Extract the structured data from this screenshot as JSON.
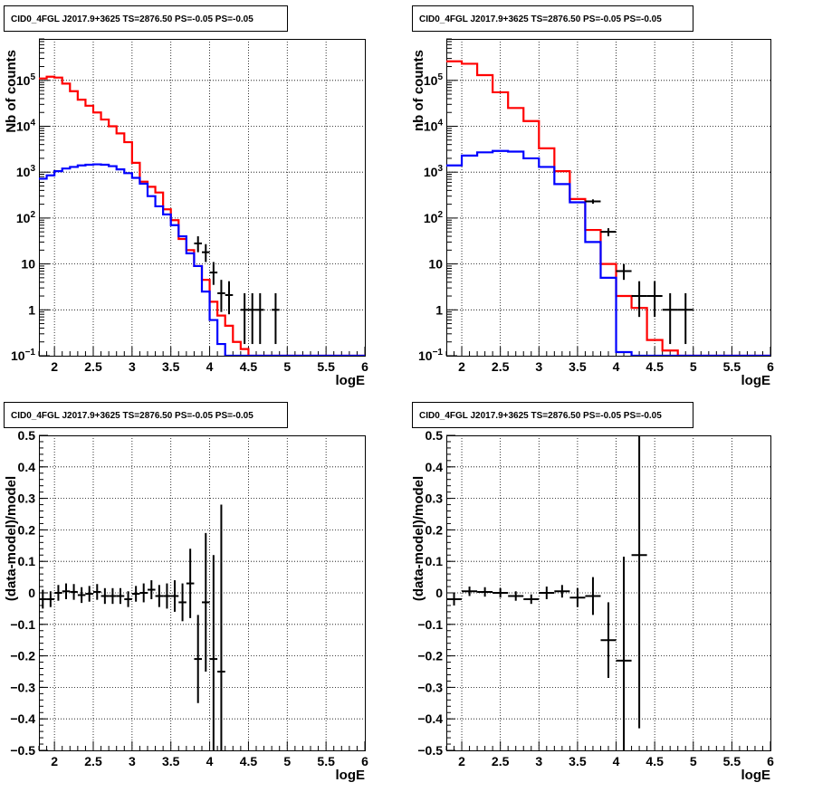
{
  "colors": {
    "data": "#000000",
    "total_model": "#ff0000",
    "component": "#0000ff",
    "grid": "#000000"
  },
  "chart_data": [
    {
      "type": "line",
      "title": "CID0_4FGL J2017.9+3625 TS=2876.50 PS=-0.05 PS=-0.05",
      "xlabel": "logE",
      "ylabel": "Nb of counts",
      "xlim": [
        1.8,
        6.0
      ],
      "ylim": [
        0.1,
        800000
      ],
      "log_y": true,
      "grid": true,
      "x_ticks": [
        "2",
        "2.5",
        "3",
        "3.5",
        "4",
        "4.5",
        "5",
        "5.5",
        "6"
      ],
      "y_ticks": [
        "10⁻¹",
        "1",
        "10",
        "10²",
        "10³",
        "10⁴",
        "10⁵"
      ],
      "bin_edges": [
        1.8,
        1.9,
        2.0,
        2.1,
        2.2,
        2.3,
        2.4,
        2.5,
        2.6,
        2.7,
        2.8,
        2.9,
        3.0,
        3.1,
        3.2,
        3.3,
        3.4,
        3.5,
        3.6,
        3.7,
        3.8,
        3.9,
        4.0,
        4.1,
        4.2,
        4.3,
        4.4,
        4.5,
        4.6,
        4.7,
        4.8,
        4.9,
        5.0,
        5.1,
        5.2,
        5.3,
        5.4,
        5.5,
        5.6,
        5.7,
        5.8,
        5.9,
        6.0
      ],
      "series": [
        {
          "style": "hist",
          "color": "#ff0000",
          "values": [
            110000,
            120000,
            115000,
            85000,
            58000,
            38000,
            28000,
            20000,
            14000,
            10000,
            7000,
            4500,
            1600,
            620,
            480,
            360,
            155,
            90,
            35,
            20,
            9,
            4.5,
            1.5,
            0.75,
            0.45,
            0.2,
            0.14,
            0.1,
            0.1,
            0.1,
            0.1,
            0.1,
            0.1,
            0.1,
            0.1,
            0.1,
            0.1,
            0.1,
            0.1,
            0.1,
            0.1,
            0.1
          ]
        },
        {
          "style": "hist",
          "color": "#0000ff",
          "values": [
            720,
            850,
            1050,
            1200,
            1300,
            1400,
            1450,
            1480,
            1450,
            1350,
            1150,
            950,
            750,
            560,
            300,
            180,
            120,
            70,
            40,
            17,
            9,
            2.5,
            0.6,
            0.18,
            0.1,
            0.1,
            0.1,
            0.1,
            0.1,
            0.1,
            0.1,
            0.1,
            0.1,
            0.1,
            0.1,
            0.1,
            0.1,
            0.1,
            0.1,
            0.1,
            0.1,
            0.1
          ]
        },
        {
          "style": "points",
          "color": "#000000",
          "x": [
            3.85,
            3.95,
            4.05,
            4.15,
            4.25,
            4.45,
            4.55,
            4.65,
            4.85
          ],
          "y": [
            28,
            18,
            6.5,
            2.3,
            2.1,
            1,
            1,
            1,
            1
          ],
          "ylo": [
            18,
            11,
            3.5,
            0.9,
            0.8,
            0.18,
            0.18,
            0.18,
            0.18
          ],
          "yhi": [
            40,
            27,
            11,
            4.5,
            4.2,
            2.3,
            2.3,
            2.3,
            2.3
          ]
        }
      ]
    },
    {
      "type": "line",
      "title": "CID0_4FGL J2017.9+3625 TS=2876.50 PS=-0.05 PS=-0.05",
      "xlabel": "logE",
      "ylabel": "nb of counts",
      "xlim": [
        1.8,
        6.0
      ],
      "ylim": [
        0.1,
        800000
      ],
      "log_y": true,
      "grid": true,
      "x_ticks": [
        "2",
        "2.5",
        "3",
        "3.5",
        "4",
        "4.5",
        "5",
        "5.5",
        "6"
      ],
      "y_ticks": [
        "10⁻¹",
        "1",
        "10",
        "10²",
        "10³",
        "10⁴",
        "10⁵"
      ],
      "bin_edges": [
        1.8,
        2.0,
        2.2,
        2.4,
        2.6,
        2.8,
        3.0,
        3.2,
        3.4,
        3.6,
        3.8,
        4.0,
        4.2,
        4.4,
        4.6,
        4.8,
        5.0,
        5.2,
        5.4,
        5.6,
        5.8,
        6.0
      ],
      "series": [
        {
          "style": "hist",
          "color": "#ff0000",
          "values": [
            260000,
            230000,
            130000,
            55000,
            25000,
            13000,
            3300,
            1050,
            260,
            55,
            10,
            2,
            1.1,
            0.22,
            0.13,
            0.1,
            0.1,
            0.1,
            0.1,
            0.1,
            0.1
          ]
        },
        {
          "style": "hist",
          "color": "#0000ff",
          "values": [
            1400,
            2300,
            2700,
            2900,
            2800,
            2000,
            1300,
            550,
            220,
            30,
            5,
            0.12,
            0.1,
            0.1,
            0.1,
            0.1,
            0.1,
            0.1,
            0.1,
            0.1,
            0.1
          ]
        },
        {
          "style": "points",
          "color": "#000000",
          "x": [
            3.7,
            3.9,
            4.1,
            4.3,
            4.5,
            4.7,
            4.9
          ],
          "y": [
            230,
            50,
            7,
            2,
            2,
            1,
            1
          ],
          "ylo": [
            205,
            40,
            4.5,
            0.7,
            0.7,
            0.18,
            0.18
          ],
          "yhi": [
            255,
            60,
            10,
            4.2,
            4.2,
            2.3,
            2.3
          ]
        }
      ]
    },
    {
      "type": "scatter",
      "title": "CID0_4FGL J2017.9+3625 TS=2876.50 PS=-0.05 PS=-0.05",
      "xlabel": "logE",
      "ylabel": "(data-model)/model",
      "xlim": [
        1.8,
        6.0
      ],
      "ylim": [
        -0.5,
        0.5
      ],
      "grid": true,
      "x_ticks": [
        "2",
        "2.5",
        "3",
        "3.5",
        "4",
        "4.5",
        "5",
        "5.5",
        "6"
      ],
      "y_ticks": [
        "−0.5",
        "−0.4",
        "−0.3",
        "−0.2",
        "−0.1",
        "0",
        "0.1",
        "0.2",
        "0.3",
        "0.4",
        "0.5"
      ],
      "points": {
        "x": [
          1.85,
          1.95,
          2.05,
          2.15,
          2.25,
          2.35,
          2.45,
          2.55,
          2.65,
          2.75,
          2.85,
          2.95,
          3.05,
          3.15,
          3.25,
          3.35,
          3.45,
          3.55,
          3.65,
          3.75,
          3.85,
          3.95,
          4.05,
          4.15
        ],
        "y": [
          -0.02,
          -0.02,
          0.0,
          0.005,
          0.003,
          -0.007,
          -0.003,
          0.003,
          -0.01,
          -0.01,
          -0.01,
          -0.02,
          -0.003,
          0.0,
          0.01,
          -0.01,
          -0.01,
          -0.01,
          -0.03,
          0.03,
          -0.21,
          -0.03,
          -0.21,
          -0.25
        ],
        "err": [
          0.03,
          0.025,
          0.025,
          0.025,
          0.025,
          0.025,
          0.025,
          0.025,
          0.025,
          0.025,
          0.025,
          0.025,
          0.025,
          0.03,
          0.03,
          0.035,
          0.04,
          0.05,
          0.06,
          0.11,
          0.14,
          0.22,
          0.33,
          0.53
        ]
      }
    },
    {
      "type": "scatter",
      "title": "CID0_4FGL J2017.9+3625 TS=2876.50 PS=-0.05 PS=-0.05",
      "xlabel": "logE",
      "ylabel": "(data-model)/model",
      "xlim": [
        1.8,
        6.0
      ],
      "ylim": [
        -0.5,
        0.5
      ],
      "grid": true,
      "x_ticks": [
        "2",
        "2.5",
        "3",
        "3.5",
        "4",
        "4.5",
        "5",
        "5.5",
        "6"
      ],
      "y_ticks": [
        "−0.5",
        "−0.4",
        "−0.3",
        "−0.2",
        "−0.1",
        "0",
        "0.1",
        "0.2",
        "0.3",
        "0.4",
        "0.5"
      ],
      "points": {
        "x": [
          1.9,
          2.1,
          2.3,
          2.5,
          2.7,
          2.9,
          3.1,
          3.3,
          3.5,
          3.7,
          3.9,
          4.1,
          4.3
        ],
        "y": [
          -0.02,
          0.005,
          0.003,
          0.0,
          -0.01,
          -0.02,
          0.0,
          0.005,
          -0.015,
          -0.01,
          -0.15,
          -0.215,
          0.12
        ],
        "err": [
          0.02,
          0.015,
          0.015,
          0.015,
          0.015,
          0.015,
          0.02,
          0.02,
          0.03,
          0.06,
          0.12,
          0.33,
          0.55
        ]
      }
    }
  ]
}
